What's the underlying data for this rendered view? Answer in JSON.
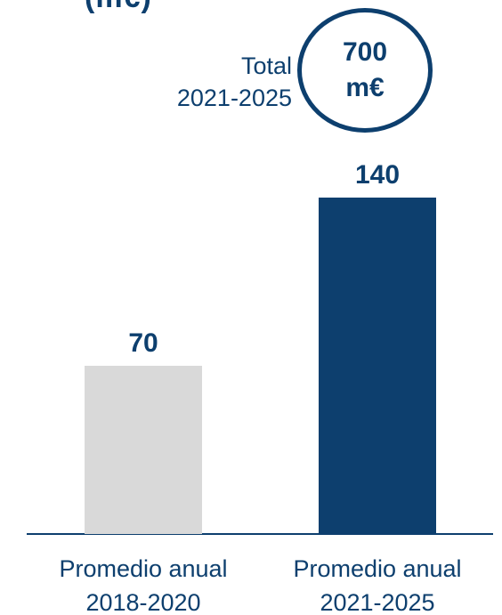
{
  "title_fragment": "(m€)",
  "total": {
    "label_line1": "Total",
    "label_line2": "2021-2025",
    "value_line1": "700",
    "value_line2": "m€"
  },
  "chart_data": {
    "type": "bar",
    "title": "",
    "xlabel": "",
    "ylabel": "",
    "categories": [
      {
        "line1": "Promedio anual",
        "line2": "2018-2020"
      },
      {
        "line1": "Promedio anual",
        "line2": "2021-2025"
      }
    ],
    "values": [
      70,
      140
    ],
    "value_labels": [
      "70",
      "140"
    ],
    "colors": [
      "#d9d9d9",
      "#0d3f6e"
    ],
    "ylim": [
      0,
      140
    ],
    "grid": false,
    "legend": "none"
  }
}
